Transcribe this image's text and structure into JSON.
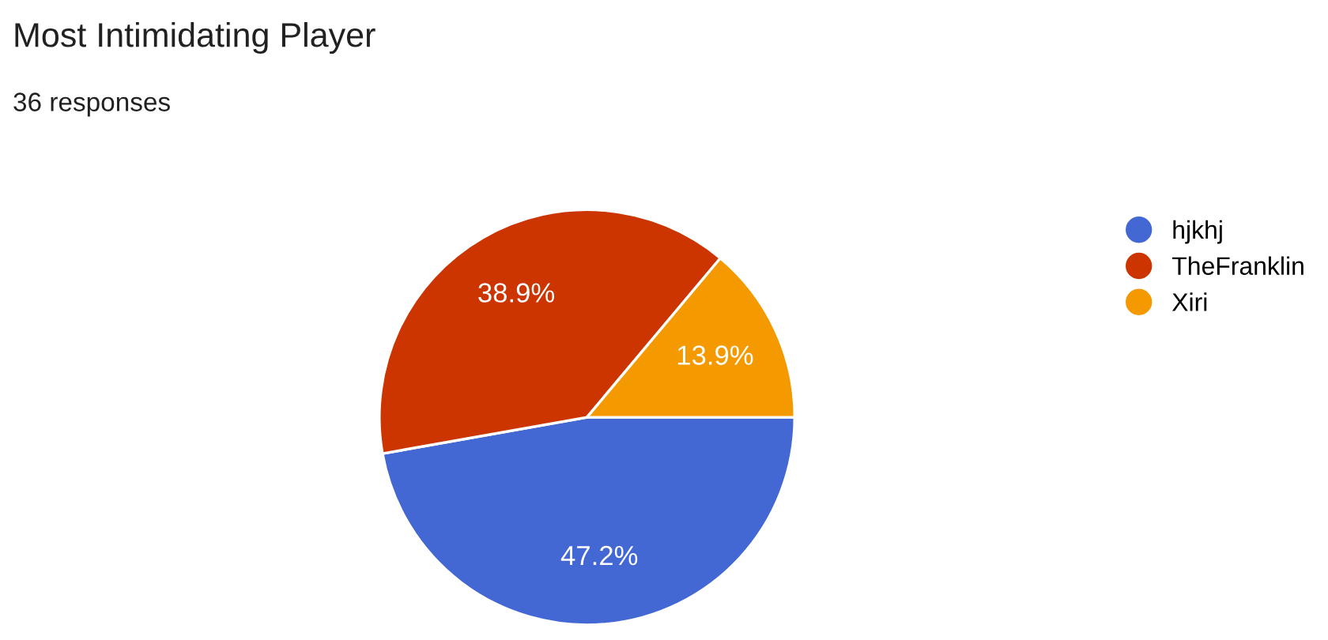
{
  "chart_data": {
    "type": "pie",
    "title": "Most Intimidating Player",
    "subtitle": "36 responses",
    "categories": [
      "hjkhj",
      "TheFranklin",
      "Xiri"
    ],
    "values": [
      47.2,
      38.9,
      13.9
    ],
    "colors": [
      "#4368d3",
      "#cc3500",
      "#f49a00"
    ],
    "value_labels": [
      "47.2%",
      "38.9%",
      "13.9%"
    ],
    "legend": "right"
  }
}
